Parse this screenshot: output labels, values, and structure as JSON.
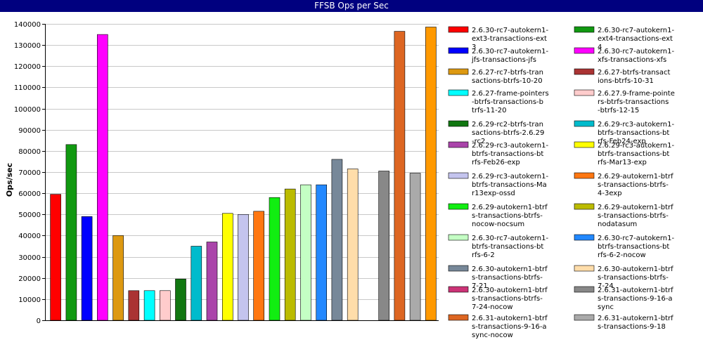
{
  "window": {
    "title": "FFSB Ops per Sec"
  },
  "chart_data": {
    "type": "bar",
    "title": "FFSB Ops per Sec",
    "xlabel": "",
    "ylabel": "Ops/sec",
    "ylim": [
      0,
      140000
    ],
    "yticks": [
      0,
      10000,
      20000,
      30000,
      40000,
      50000,
      60000,
      70000,
      80000,
      90000,
      100000,
      110000,
      120000,
      130000,
      140000
    ],
    "grid": true,
    "legend_position": "right",
    "series": [
      {
        "name": "2.6.30-rc7-autokern1-ext3-transactions-ext3",
        "value": 59500,
        "color": "#ff0000"
      },
      {
        "name": "2.6.30-rc7-autokern1-ext4-transactions-ext4",
        "value": 83000,
        "color": "#119911"
      },
      {
        "name": "2.6.30-rc7-autokern1-jfs-transactions-jfs",
        "value": 49000,
        "color": "#0000ff"
      },
      {
        "name": "2.6.30-rc7-autokern1-xfs-transactions-xfs",
        "value": 135000,
        "color": "#ff00ff"
      },
      {
        "name": "2.6.27-rc7-btrfs-transactions-btrfs-10-20",
        "value": 40000,
        "color": "#dd9911"
      },
      {
        "name": "2.6.27-btrfs-transactions-btrfs-10-31",
        "value": 14000,
        "color": "#aa3333"
      },
      {
        "name": "2.6.27-frame-pointers-btrfs-transactions-btrfs-11-20",
        "value": 14000,
        "color": "#00ffff"
      },
      {
        "name": "2.6.27.9-frame-pointers-btrfs-transactions-btrfs-12-15",
        "value": 14000,
        "color": "#ffcccc"
      },
      {
        "name": "2.6.29-rc2-btrfs-transactions-btrfs-2.6.29-rc2",
        "value": 19500,
        "color": "#117711"
      },
      {
        "name": "2.6.29-rc3-autokern1-btrfs-transactions-btrfs-Feb24-exp",
        "value": 35000,
        "color": "#00bbcc"
      },
      {
        "name": "2.6.29-rc3-autokern1-btrfs-transactions-btrfs-Feb26-exp",
        "value": 37000,
        "color": "#aa44aa"
      },
      {
        "name": "2.6.29-rc3-autokern1-btrfs-transactions-btrfs-Mar13-exp",
        "value": 50500,
        "color": "#ffff00"
      },
      {
        "name": "2.6.29-rc3-autokern1-btrfs-transactions-Mar13exp-ossd",
        "value": 50000,
        "color": "#c4c4ee"
      },
      {
        "name": "2.6.29-autokern1-btrfs-transactions-btrfs-4-3exp",
        "value": 51500,
        "color": "#ff7711"
      },
      {
        "name": "2.6.29-autokern1-btrfs-transactions-btrfs-nocow-nocsum",
        "value": 58000,
        "color": "#11ee11"
      },
      {
        "name": "2.6.29-autokern1-btrfs-transactions-btrfs-nodatasum",
        "value": 62000,
        "color": "#bbbb00"
      },
      {
        "name": "2.6.30-rc7-autokern1-btrfs-transactions-btrfs-6-2",
        "value": 64000,
        "color": "#c4ffc4"
      },
      {
        "name": "2.6.30-rc7-autokern1-btrfs-transactions-btrfs-6-2-nocow",
        "value": 64000,
        "color": "#2288ff"
      },
      {
        "name": "2.6.30-autokern1-btrfs-transactions-btrfs-7-21",
        "value": 76000,
        "color": "#778899"
      },
      {
        "name": "2.6.30-autokern1-btrfs-transactions-btrfs-7-24",
        "value": 71500,
        "color": "#ffddaa"
      },
      {
        "name": "2.6.30-autokern1-btrfs-transactions-btrfs-7-24-nocow",
        "value": 0,
        "color": "#cc3377"
      },
      {
        "name": "2.6.31-autokern1-btrfs-transactions-9-16-async",
        "value": 70500,
        "color": "#888888"
      },
      {
        "name": "2.6.31-autokern1-btrfs-transactions-9-16-async-nocow",
        "value": 136500,
        "color": "#dd6622"
      },
      {
        "name": "2.6.31-autokern1-btrfs-transactions-9-18",
        "value": 69500,
        "color": "#aaaaaa"
      },
      {
        "name": "",
        "value": 138500,
        "color": "#ff9900"
      }
    ]
  }
}
